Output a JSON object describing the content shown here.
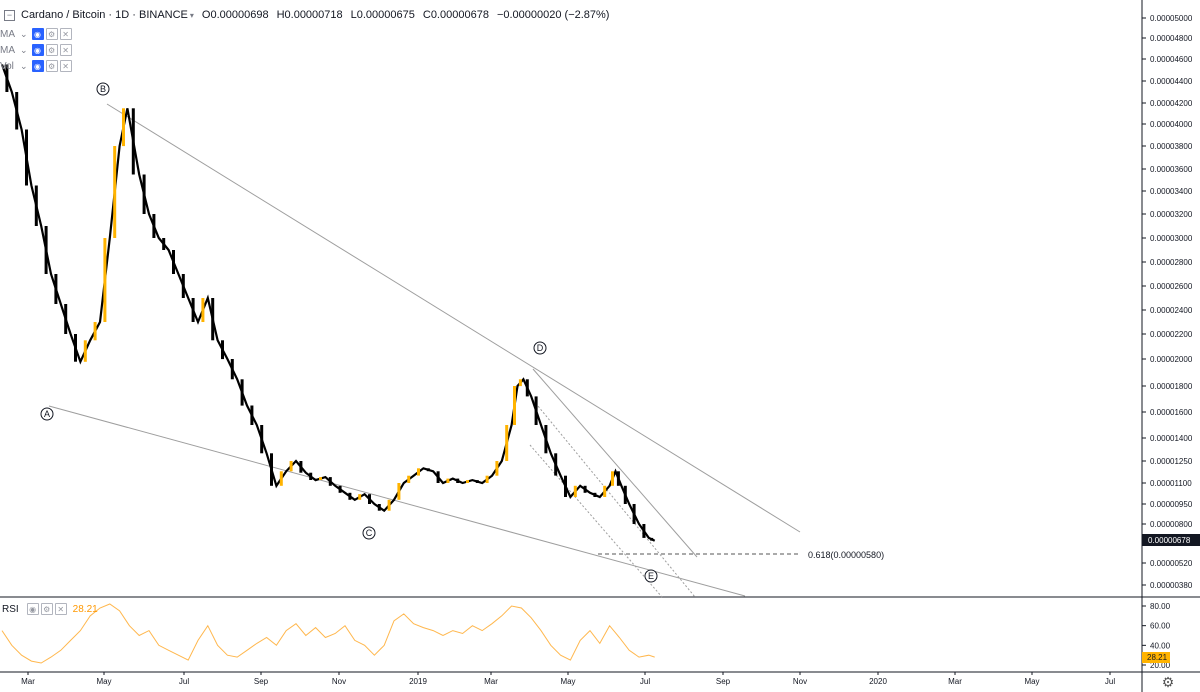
{
  "legend": {
    "symbol": "Cardano / Bitcoin · 1D · BINANCE",
    "ohlc": {
      "open": "O0.00000698",
      "high": "H0.00000718",
      "low": "L0.00000675",
      "close": "C0.00000678",
      "change": "−0.00000020 (−2.87%)"
    },
    "indicators": [
      {
        "name": "MA"
      },
      {
        "name": "MA"
      },
      {
        "name": "Vol"
      }
    ]
  },
  "rsi": {
    "name": "RSI",
    "value": "28.21"
  },
  "chart_data": {
    "type": "candlestick-line",
    "price_axis": {
      "labels": [
        "0.00005000",
        "0.00004800",
        "0.00004600",
        "0.00004400",
        "0.00004200",
        "0.00004000",
        "0.00003800",
        "0.00003600",
        "0.00003400",
        "0.00003200",
        "0.00003000",
        "0.00002800",
        "0.00002600",
        "0.00002400",
        "0.00002200",
        "0.00002000",
        "0.00001800",
        "0.00001600",
        "0.00001400",
        "0.00001250",
        "0.00001100",
        "0.00000950",
        "0.00000800",
        "0.00000520",
        "0.00000380"
      ],
      "current_price": "0.00000678"
    },
    "rsi_axis": {
      "labels": [
        "80.00",
        "60.00",
        "40.00",
        "20.00"
      ],
      "current": "28.21"
    },
    "time_axis": {
      "labels": [
        "Mar",
        "May",
        "Jul",
        "Sep",
        "Nov",
        "2019",
        "Mar",
        "May",
        "Jul",
        "Sep",
        "Nov",
        "2020",
        "Mar",
        "May",
        "Jul"
      ]
    },
    "price_series": [
      [
        0,
        4.55e-05
      ],
      [
        0.5,
        4.3e-05
      ],
      [
        1.0,
        3.95e-05
      ],
      [
        1.5,
        3.45e-05
      ],
      [
        2.0,
        3.1e-05
      ],
      [
        2.5,
        2.7e-05
      ],
      [
        3.0,
        2.45e-05
      ],
      [
        3.5,
        2.2e-05
      ],
      [
        4.0,
        1.98e-05
      ],
      [
        4.5,
        2.15e-05
      ],
      [
        5.0,
        2.3e-05
      ],
      [
        5.5,
        3e-05
      ],
      [
        6.0,
        3.8e-05
      ],
      [
        6.4,
        4.15e-05
      ],
      [
        7.0,
        3.55e-05
      ],
      [
        7.5,
        3.2e-05
      ],
      [
        8.0,
        3e-05
      ],
      [
        8.5,
        2.9e-05
      ],
      [
        9.0,
        2.7e-05
      ],
      [
        9.5,
        2.5e-05
      ],
      [
        10.0,
        2.3e-05
      ],
      [
        10.5,
        2.5e-05
      ],
      [
        11.0,
        2.15e-05
      ],
      [
        11.5,
        2e-05
      ],
      [
        12.0,
        1.85e-05
      ],
      [
        12.5,
        1.65e-05
      ],
      [
        13.0,
        1.5e-05
      ],
      [
        13.5,
        1.3e-05
      ],
      [
        14.0,
        1.08e-05
      ],
      [
        14.5,
        1.18e-05
      ],
      [
        15.0,
        1.25e-05
      ],
      [
        15.5,
        1.17e-05
      ],
      [
        16.0,
        1.12e-05
      ],
      [
        16.5,
        1.14e-05
      ],
      [
        17.0,
        1.08e-05
      ],
      [
        17.5,
        1.03e-05
      ],
      [
        18.0,
        9.8e-06
      ],
      [
        18.5,
        1.02e-05
      ],
      [
        19.0,
        9.5e-06
      ],
      [
        19.5,
        9e-06
      ],
      [
        20.0,
        9.8e-06
      ],
      [
        20.5,
        1.1e-05
      ],
      [
        21.0,
        1.15e-05
      ],
      [
        21.5,
        1.2e-05
      ],
      [
        22.0,
        1.18e-05
      ],
      [
        22.5,
        1.1e-05
      ],
      [
        23.0,
        1.13e-05
      ],
      [
        23.5,
        1.1e-05
      ],
      [
        24.0,
        1.12e-05
      ],
      [
        24.5,
        1.1e-05
      ],
      [
        25.0,
        1.15e-05
      ],
      [
        25.5,
        1.25e-05
      ],
      [
        26.0,
        1.5e-05
      ],
      [
        26.3,
        1.8e-05
      ],
      [
        26.6,
        1.85e-05
      ],
      [
        27.0,
        1.72e-05
      ],
      [
        27.5,
        1.5e-05
      ],
      [
        28.0,
        1.3e-05
      ],
      [
        28.5,
        1.15e-05
      ],
      [
        29.0,
        1e-05
      ],
      [
        29.5,
        1.08e-05
      ],
      [
        30.0,
        1.03e-05
      ],
      [
        30.5,
        1e-05
      ],
      [
        31.0,
        1.08e-05
      ],
      [
        31.3,
        1.18e-05
      ],
      [
        31.6,
        1.08e-05
      ],
      [
        32.0,
        9.5e-06
      ],
      [
        32.5,
        8e-06
      ],
      [
        33.0,
        7e-06
      ],
      [
        33.3,
        6.8e-06
      ]
    ],
    "rsi_series": [
      [
        0,
        55
      ],
      [
        0.5,
        40
      ],
      [
        1,
        30
      ],
      [
        1.5,
        24
      ],
      [
        2,
        22
      ],
      [
        2.5,
        28
      ],
      [
        3,
        35
      ],
      [
        3.5,
        45
      ],
      [
        4,
        55
      ],
      [
        4.5,
        70
      ],
      [
        5,
        78
      ],
      [
        5.5,
        82
      ],
      [
        6,
        75
      ],
      [
        6.5,
        60
      ],
      [
        7,
        50
      ],
      [
        7.5,
        55
      ],
      [
        8,
        40
      ],
      [
        8.5,
        35
      ],
      [
        9,
        30
      ],
      [
        9.5,
        25
      ],
      [
        10,
        45
      ],
      [
        10.5,
        60
      ],
      [
        11,
        40
      ],
      [
        11.5,
        30
      ],
      [
        12,
        28
      ],
      [
        12.5,
        35
      ],
      [
        13,
        42
      ],
      [
        13.5,
        48
      ],
      [
        14,
        40
      ],
      [
        14.5,
        55
      ],
      [
        15,
        62
      ],
      [
        15.5,
        50
      ],
      [
        16,
        58
      ],
      [
        16.5,
        48
      ],
      [
        17,
        52
      ],
      [
        17.5,
        60
      ],
      [
        18,
        45
      ],
      [
        18.5,
        40
      ],
      [
        19,
        30
      ],
      [
        19.5,
        40
      ],
      [
        20,
        65
      ],
      [
        20.5,
        72
      ],
      [
        21,
        62
      ],
      [
        21.5,
        58
      ],
      [
        22,
        55
      ],
      [
        22.5,
        50
      ],
      [
        23,
        55
      ],
      [
        23.5,
        52
      ],
      [
        24,
        60
      ],
      [
        24.5,
        55
      ],
      [
        25,
        62
      ],
      [
        25.5,
        70
      ],
      [
        26,
        80
      ],
      [
        26.5,
        78
      ],
      [
        27,
        68
      ],
      [
        27.5,
        55
      ],
      [
        28,
        40
      ],
      [
        28.5,
        30
      ],
      [
        29,
        25
      ],
      [
        29.5,
        45
      ],
      [
        30,
        55
      ],
      [
        30.5,
        42
      ],
      [
        31,
        60
      ],
      [
        31.5,
        48
      ],
      [
        32,
        35
      ],
      [
        32.5,
        28
      ],
      [
        33,
        30
      ],
      [
        33.3,
        28
      ]
    ],
    "wave_labels": [
      "A",
      "B",
      "C",
      "D",
      "E"
    ],
    "fib_annotation": "0.618(0.00000580)"
  },
  "colors": {
    "up_candle": "#ffb300",
    "down_candle": "#000000",
    "trendline": "#9e9e9e",
    "rsi": "#ffb74d",
    "price_tag": "#131722",
    "rsi_tag": "#ffb300"
  }
}
